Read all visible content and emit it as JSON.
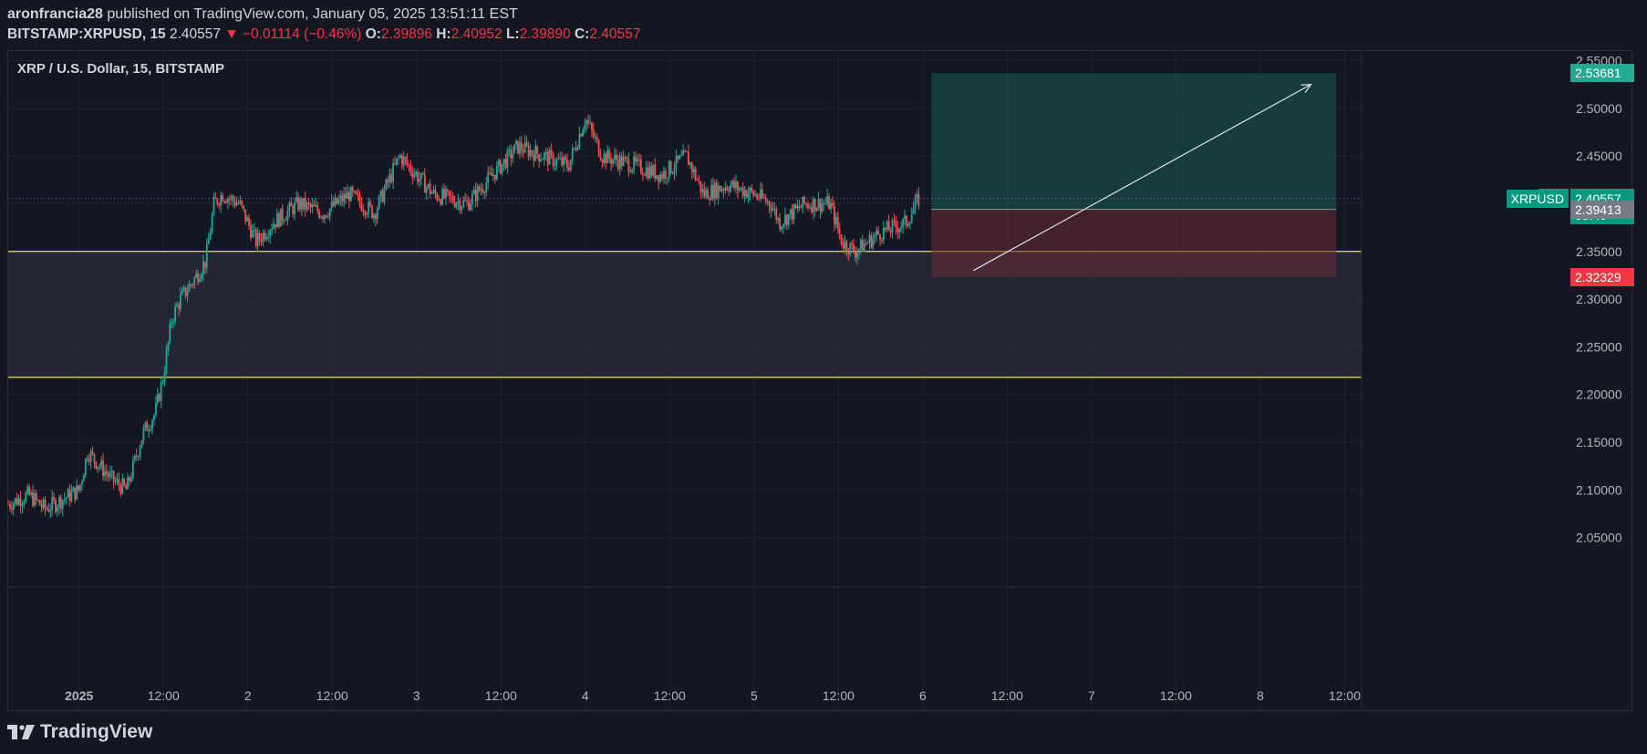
{
  "header": {
    "author": "aronfrancia28",
    "published_text": "published on TradingView.com, January 05, 2025 13:51:11 EST",
    "symbol": "BITSTAMP:XRPUSD, 15",
    "last": "2.40557",
    "change": "▼ −0.01114 (−0.46%)",
    "o_label": "O:",
    "o": "2.39896",
    "h_label": "H:",
    "h": "2.40952",
    "l_label": "L:",
    "l": "2.39890",
    "c_label": "C:",
    "c": "2.40557"
  },
  "legend_title": "XRP / U.S. Dollar, 15, BITSTAMP",
  "footer_brand": "TradingView",
  "colors": {
    "background": "#131722",
    "up": "#26a69a",
    "down": "#ef5350",
    "level_line": "#f0e442",
    "profit_zone": "#1f4a45",
    "loss_zone": "#4a2330"
  },
  "chart_data": {
    "type": "candlestick",
    "title": "XRP / U.S. Dollar, 15, BITSTAMP",
    "interval": "15",
    "ylim": [
      2.0,
      2.56
    ],
    "y_ticks": [
      "2.05000",
      "2.10000",
      "2.15000",
      "2.20000",
      "2.25000",
      "2.30000",
      "2.35000",
      "2.40000",
      "2.45000",
      "2.50000",
      "2.55000"
    ],
    "x_ticks": [
      "2025",
      "12:00",
      "2",
      "12:00",
      "3",
      "12:00",
      "4",
      "12:00",
      "5",
      "12:00",
      "6",
      "12:00",
      "7",
      "12:00",
      "8",
      "12:00"
    ],
    "x_tick_times": [
      0,
      0.5,
      1,
      1.5,
      2,
      2.5,
      3,
      3.5,
      4,
      4.5,
      5,
      5.5,
      6,
      6.5,
      7,
      7.5
    ],
    "xlim": [
      -0.42,
      7.6
    ],
    "price_path": [
      [
        -0.42,
        2.085
      ],
      [
        -0.3,
        2.095
      ],
      [
        -0.2,
        2.08
      ],
      [
        -0.1,
        2.09
      ],
      [
        0.0,
        2.1
      ],
      [
        0.05,
        2.14
      ],
      [
        0.15,
        2.12
      ],
      [
        0.2,
        2.11
      ],
      [
        0.28,
        2.1
      ],
      [
        0.38,
        2.16
      ],
      [
        0.45,
        2.18
      ],
      [
        0.5,
        2.22
      ],
      [
        0.55,
        2.28
      ],
      [
        0.6,
        2.3
      ],
      [
        0.68,
        2.32
      ],
      [
        0.75,
        2.34
      ],
      [
        0.8,
        2.4
      ],
      [
        0.85,
        2.41
      ],
      [
        0.95,
        2.4
      ],
      [
        1.05,
        2.36
      ],
      [
        1.15,
        2.38
      ],
      [
        1.3,
        2.4
      ],
      [
        1.45,
        2.39
      ],
      [
        1.6,
        2.41
      ],
      [
        1.75,
        2.39
      ],
      [
        1.9,
        2.45
      ],
      [
        2.0,
        2.43
      ],
      [
        2.1,
        2.41
      ],
      [
        2.3,
        2.4
      ],
      [
        2.5,
        2.44
      ],
      [
        2.6,
        2.46
      ],
      [
        2.75,
        2.45
      ],
      [
        2.9,
        2.44
      ],
      [
        3.0,
        2.49
      ],
      [
        3.1,
        2.45
      ],
      [
        3.3,
        2.44
      ],
      [
        3.45,
        2.43
      ],
      [
        3.6,
        2.45
      ],
      [
        3.7,
        2.41
      ],
      [
        3.85,
        2.42
      ],
      [
        4.0,
        2.41
      ],
      [
        4.1,
        2.4
      ],
      [
        4.15,
        2.38
      ],
      [
        4.3,
        2.4
      ],
      [
        4.45,
        2.4
      ],
      [
        4.52,
        2.36
      ],
      [
        4.6,
        2.35
      ],
      [
        4.75,
        2.37
      ],
      [
        4.9,
        2.38
      ],
      [
        4.98,
        2.406
      ]
    ],
    "levels": [
      {
        "price": 2.35
      },
      {
        "price": 2.218
      }
    ],
    "demand_zone": {
      "from": 2.218,
      "to": 2.35
    },
    "position": {
      "side": "long",
      "entry": 2.39413,
      "target": 2.53681,
      "stop": 2.32329,
      "t_start": 5.05,
      "t_end": 7.45
    },
    "arrow": {
      "from": [
        5.3,
        2.33
      ],
      "to": [
        7.3,
        2.525
      ]
    },
    "current_price": 2.40557,
    "price_labels": [
      {
        "label": "",
        "value": "2.53681",
        "price": 2.53681,
        "color": "#22ab94"
      },
      {
        "label": "Ask",
        "value": "2.40638",
        "price": 2.40638,
        "color": "#f23645"
      },
      {
        "label": "Bid",
        "value": "2.40561",
        "price": 2.40561,
        "color": "#2962ff"
      },
      {
        "label": "XRPUSD",
        "value": "2.40557",
        "price": 2.40557,
        "color": "#089981",
        "countdown": "08:49"
      },
      {
        "label": "",
        "value": "2.39413",
        "price": 2.39413,
        "color": "#787b86"
      },
      {
        "label": "",
        "value": "2.32329",
        "price": 2.32329,
        "color": "#f23645"
      }
    ]
  }
}
